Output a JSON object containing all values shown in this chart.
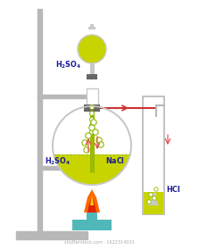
{
  "bg_color": "#ffffff",
  "stand_color": "#b8b8b8",
  "flask_outline": "#c8c8c8",
  "flask_liquid_color": "#c8d400",
  "sep_liquid_color": "#c8d400",
  "stopper_color": "#666666",
  "tube_liquid_color": "#c8d400",
  "bubble_color": "#90b800",
  "bubble_fill": "#e8f040",
  "flame_orange": "#ff6600",
  "flame_red": "#dd2200",
  "flame_yellow": "#ffcc00",
  "bunsen_body": "#50b8b8",
  "bunsen_base": "#50b8b8",
  "arrow_color": "#e04040",
  "label_color": "#1a1a99",
  "pipe_color": "#b8b8b8",
  "pipe_red": "#cc3333",
  "neck_green": "#a0b800"
}
